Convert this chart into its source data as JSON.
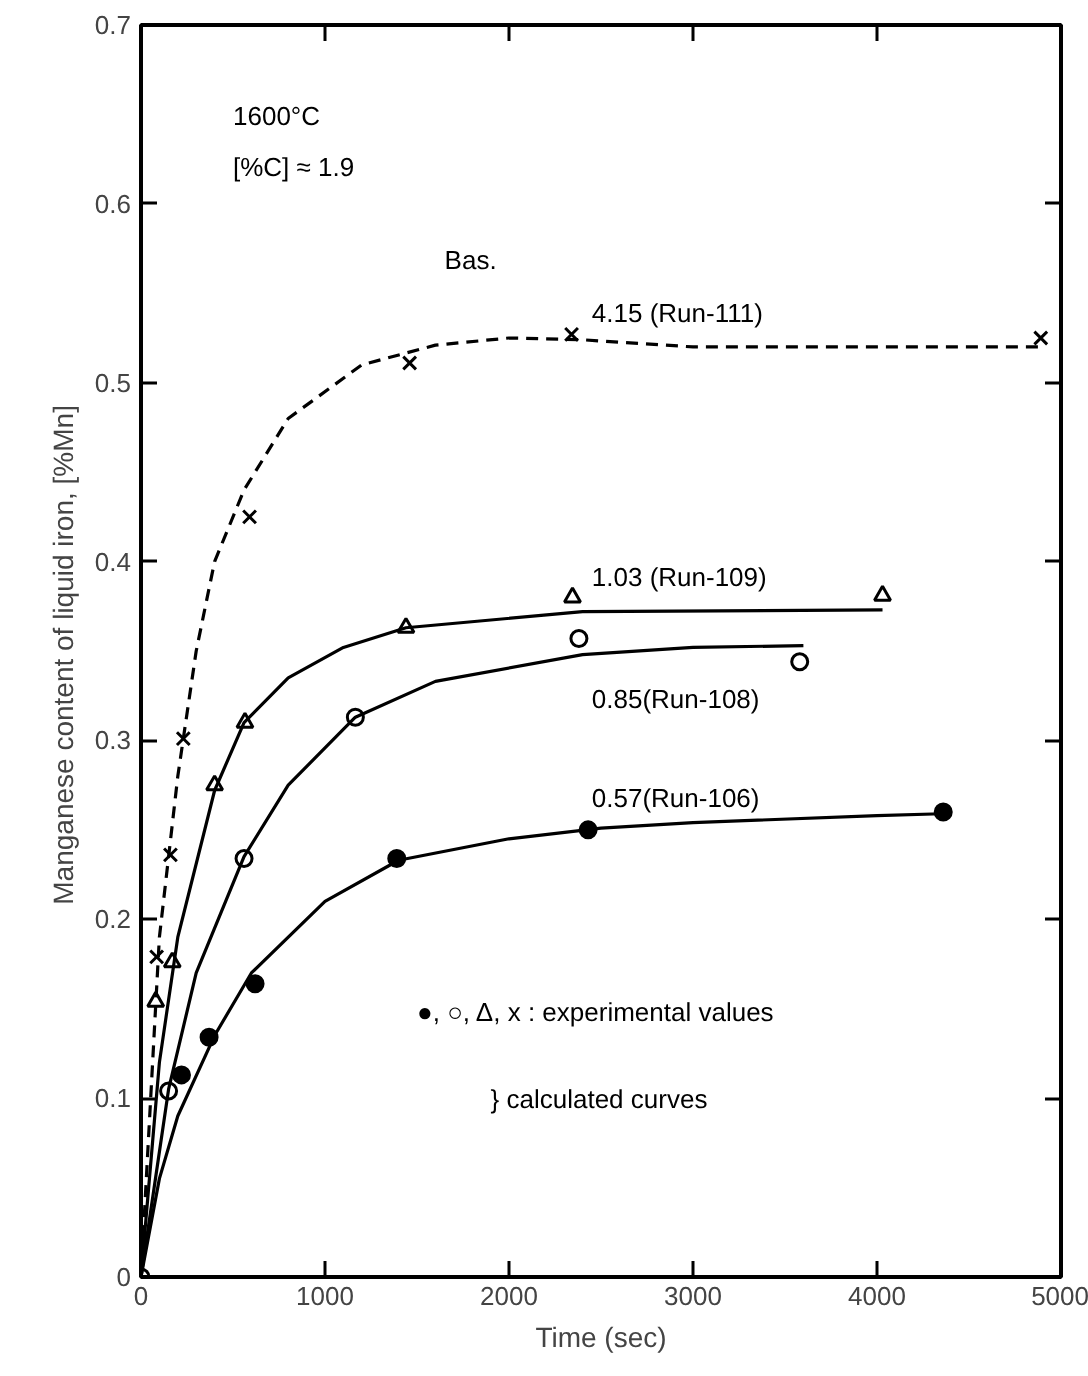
{
  "chart_data": {
    "type": "scatter",
    "xlabel": "Time (sec)",
    "ylabel": "Manganese content of liquid iron,  [%Mn]",
    "xlim": [
      0,
      5000
    ],
    "ylim": [
      0,
      0.7
    ],
    "xticks": [
      0,
      1000,
      2000,
      3000,
      4000,
      5000
    ],
    "yticks": [
      0,
      0.1,
      0.2,
      0.3,
      0.4,
      0.5,
      0.6,
      0.7
    ],
    "grid": false,
    "series": [
      {
        "marker": "circle",
        "color": "#000000",
        "x": [
          220,
          370,
          620,
          1390,
          2430,
          4360
        ],
        "values": [
          0.113,
          0.134,
          0.164,
          0.234,
          0.25,
          0.26
        ]
      },
      {
        "marker": "circle",
        "color": "#ffffff",
        "x": [
          0,
          150,
          560,
          1165,
          2380,
          3580
        ],
        "values": [
          0,
          0.104,
          0.234,
          0.313,
          0.357,
          0.344
        ]
      },
      {
        "marker": "triangle",
        "color": "#ffffff",
        "x": [
          80,
          170,
          400,
          565,
          1440,
          2345,
          4030
        ],
        "values": [
          0.154,
          0.176,
          0.275,
          0.31,
          0.363,
          0.38,
          0.381
        ]
      },
      {
        "marker": "cross",
        "color": "#000000",
        "x": [
          85,
          160,
          230,
          590,
          1460,
          2340,
          4890
        ],
        "values": [
          0.179,
          0.236,
          0.301,
          0.425,
          0.511,
          0.527,
          0.525
        ]
      },
      {
        "type": "line",
        "name": "0.57(Run-106)",
        "line_style": "solid",
        "color": "#000000",
        "x": [
          0,
          100,
          200,
          400,
          600,
          1000,
          1400,
          2000,
          2500,
          3000,
          4000,
          4350
        ],
        "values": [
          0,
          0.055,
          0.09,
          0.135,
          0.17,
          0.21,
          0.233,
          0.245,
          0.251,
          0.254,
          0.258,
          0.259
        ]
      },
      {
        "type": "line",
        "name": "0.85(Run-108)",
        "line_style": "solid",
        "color": "#000000",
        "x": [
          0,
          150,
          300,
          560,
          800,
          1165,
          1600,
          2400,
          3000,
          3600
        ],
        "values": [
          0,
          0.105,
          0.17,
          0.235,
          0.275,
          0.313,
          0.333,
          0.348,
          0.352,
          0.353
        ]
      },
      {
        "type": "line",
        "name": "1.03 (Run-109)",
        "line_style": "solid",
        "color": "#000000",
        "x": [
          0,
          100,
          200,
          400,
          560,
          800,
          1100,
          1440,
          2400,
          4030
        ],
        "values": [
          0,
          0.12,
          0.19,
          0.272,
          0.31,
          0.335,
          0.352,
          0.363,
          0.372,
          0.373
        ]
      },
      {
        "type": "line",
        "name": "4.15 (Run-111)",
        "line_style": "dashed",
        "color": "#000000",
        "x": [
          0,
          100,
          200,
          300,
          400,
          560,
          800,
          1200,
          1600,
          2000,
          2400,
          3000,
          4000,
          4900
        ],
        "values": [
          0,
          0.19,
          0.28,
          0.35,
          0.4,
          0.44,
          0.48,
          0.51,
          0.521,
          0.525,
          0.524,
          0.52,
          0.52,
          0.52
        ]
      }
    ],
    "annotations": [
      "Bas.",
      "1600°C",
      "[%C] ≈ 1.9",
      "●, ○, Δ, x : experimental values",
      "} calculated curves"
    ]
  }
}
